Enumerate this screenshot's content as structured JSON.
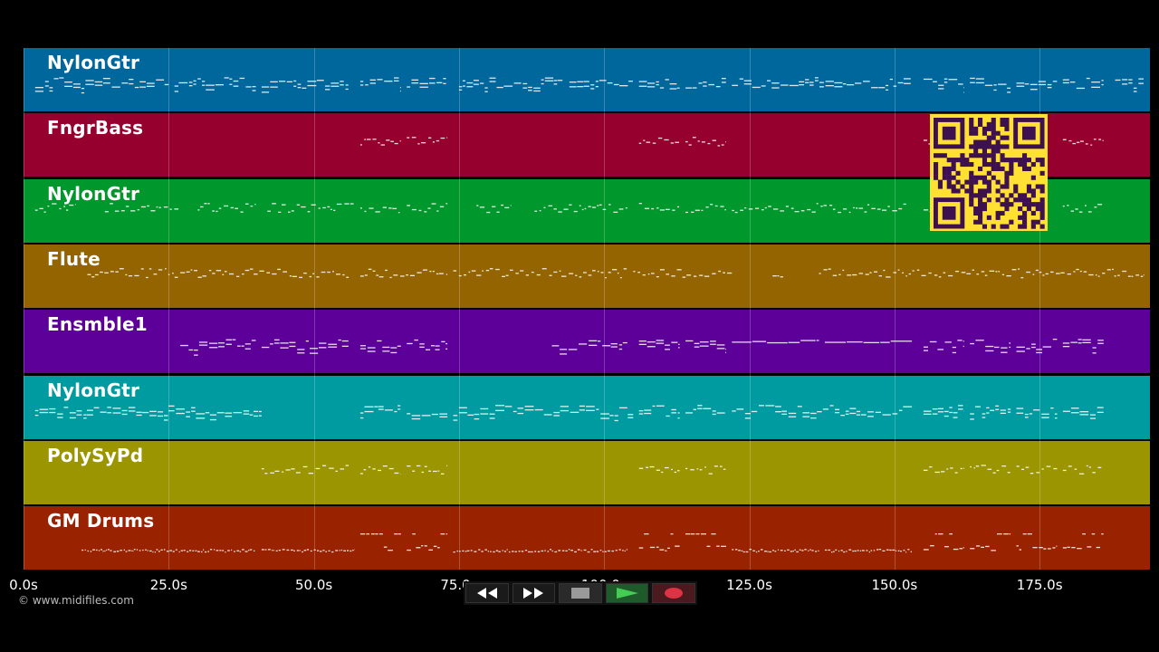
{
  "colors": {
    "background": "#000000",
    "grid": "rgba(255,255,255,0.22)",
    "note": "#ffffff",
    "qr_bg": "#ffe033",
    "qr_fg": "#3d1050"
  },
  "tracks": [
    {
      "name": "NylonGtr",
      "color": "#00679c"
    },
    {
      "name": "FngrBass",
      "color": "#96002e"
    },
    {
      "name": "NylonGtr",
      "color": "#00982c"
    },
    {
      "name": "Flute",
      "color": "#946400"
    },
    {
      "name": "Ensmble1",
      "color": "#5c0099"
    },
    {
      "name": "NylonGtr",
      "color": "#009ba0"
    },
    {
      "name": "PolySyPd",
      "color": "#9a9500"
    },
    {
      "name": "GM Drums",
      "color": "#992300"
    }
  ],
  "axis": {
    "ticks": [
      "0.0s",
      "25.0s",
      "50.0s",
      "75.0s",
      "100.0s",
      "125.0s",
      "150.0s",
      "175.0s"
    ],
    "max_seconds": 194
  },
  "copyright": "© www.midifiles.com",
  "transport": {
    "buttons": [
      {
        "name": "rewind-button",
        "icon": "rewind-icon",
        "icon_color": "#ffffff",
        "bg": "#1a1a1a"
      },
      {
        "name": "fast-forward-button",
        "icon": "fast-forward-icon",
        "icon_color": "#ffffff",
        "bg": "#1a1a1a"
      },
      {
        "name": "stop-button",
        "icon": "stop-icon",
        "icon_color": "#9a9a9a",
        "bg": "#2a2a2a"
      },
      {
        "name": "play-button",
        "icon": "play-icon",
        "icon_color": "#44cc55",
        "bg": "#1f5a2a"
      },
      {
        "name": "record-button",
        "icon": "record-icon",
        "icon_color": "#dd3344",
        "bg": "#4a1a1e"
      }
    ]
  }
}
